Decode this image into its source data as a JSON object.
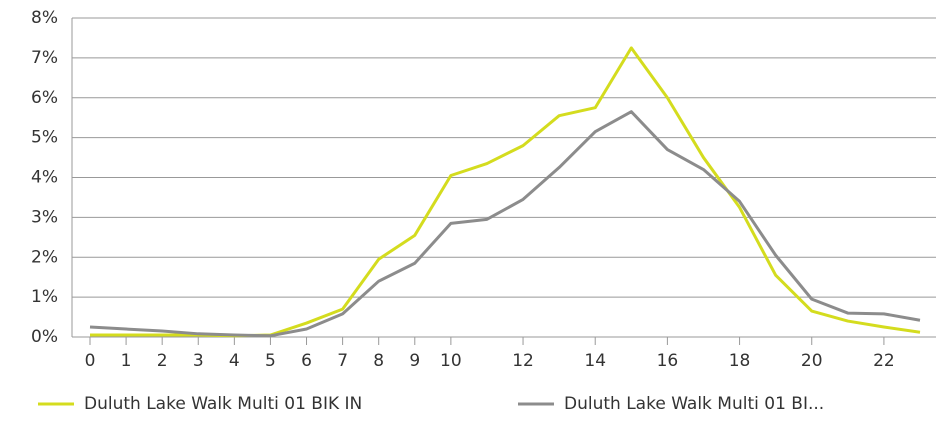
{
  "chart_data": {
    "type": "line",
    "x": [
      0,
      1,
      2,
      3,
      4,
      5,
      6,
      7,
      8,
      9,
      10,
      11,
      12,
      13,
      14,
      15,
      16,
      17,
      18,
      19,
      20,
      21,
      22,
      23
    ],
    "xlim": [
      0,
      23
    ],
    "xticks": [
      0,
      1,
      2,
      3,
      4,
      5,
      6,
      7,
      8,
      9,
      10,
      12,
      14,
      16,
      18,
      20,
      22
    ],
    "ylim": [
      0,
      8
    ],
    "yticks": [
      {
        "value": 0,
        "label": "0%"
      },
      {
        "value": 1,
        "label": "1%"
      },
      {
        "value": 2,
        "label": "2%"
      },
      {
        "value": 3,
        "label": "3%"
      },
      {
        "value": 4,
        "label": "4%"
      },
      {
        "value": 5,
        "label": "5%"
      },
      {
        "value": 6,
        "label": "6%"
      },
      {
        "value": 7,
        "label": "7%"
      },
      {
        "value": 8,
        "label": "8%"
      }
    ],
    "grid": true,
    "legend": "bottom",
    "series": [
      {
        "name": "Duluth Lake Walk Multi 01 BIK IN",
        "color": "#d4dc1e",
        "values": [
          0.05,
          0.05,
          0.05,
          0.05,
          0.03,
          0.05,
          0.35,
          0.7,
          1.95,
          2.55,
          4.05,
          4.35,
          4.8,
          5.55,
          5.75,
          7.25,
          6.0,
          4.5,
          3.25,
          1.55,
          0.65,
          0.4,
          0.25,
          0.12
        ]
      },
      {
        "name": "Duluth Lake Walk Multi 01 BI...",
        "color": "#8c8c8c",
        "values": [
          0.25,
          0.2,
          0.15,
          0.08,
          0.05,
          0.03,
          0.2,
          0.58,
          1.4,
          1.85,
          2.85,
          2.95,
          3.45,
          4.25,
          5.15,
          5.65,
          4.7,
          4.2,
          3.4,
          2.05,
          0.95,
          0.6,
          0.58,
          0.42
        ]
      }
    ]
  }
}
